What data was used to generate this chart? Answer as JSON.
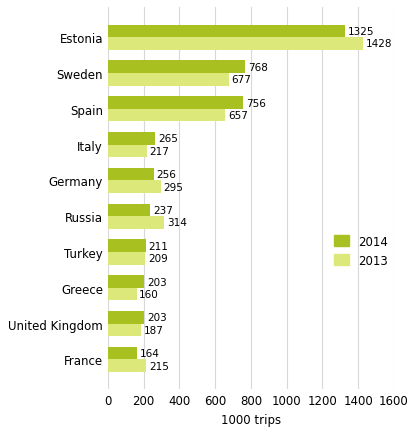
{
  "countries": [
    "Estonia",
    "Sweden",
    "Spain",
    "Italy",
    "Germany",
    "Russia",
    "Turkey",
    "Greece",
    "United Kingdom",
    "France"
  ],
  "values_2014": [
    1325,
    768,
    756,
    265,
    256,
    237,
    211,
    203,
    203,
    164
  ],
  "values_2013": [
    1428,
    677,
    657,
    217,
    295,
    314,
    209,
    160,
    187,
    215
  ],
  "color_2014": "#a8c020",
  "color_2013": "#dce87a",
  "xlabel": "1000 trips",
  "xlim": [
    0,
    1600
  ],
  "xticks": [
    0,
    200,
    400,
    600,
    800,
    1000,
    1200,
    1400,
    1600
  ],
  "legend_2014": "2014",
  "legend_2013": "2013",
  "bar_height": 0.35,
  "background_color": "#ffffff",
  "grid_color": "#d8d8d8",
  "fontsize_labels": 8.5,
  "fontsize_values": 7.5,
  "fontsize_axis": 8.5
}
